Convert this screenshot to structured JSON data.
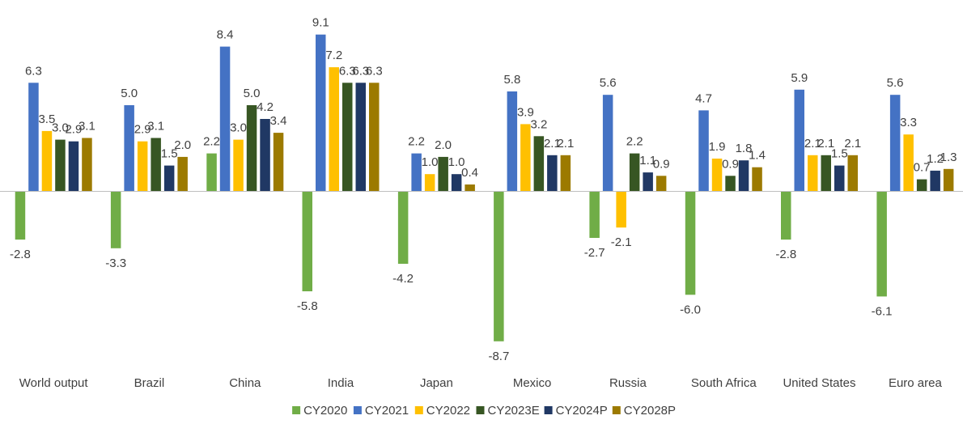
{
  "chart_data": {
    "type": "bar",
    "title": "",
    "xlabel": "",
    "ylabel": "",
    "ylim": [
      -9.5,
      10.5
    ],
    "grid": false,
    "legend_position": "bottom",
    "categories": [
      "World output",
      "Brazil",
      "China",
      "India",
      "Japan",
      "Mexico",
      "Russia",
      "South Africa",
      "United States",
      "Euro area"
    ],
    "series": [
      {
        "name": "CY2020",
        "color": "#70ad47",
        "values": [
          -2.8,
          -3.3,
          2.2,
          -5.8,
          -4.2,
          -8.7,
          -2.7,
          -6.0,
          -2.8,
          -6.1
        ]
      },
      {
        "name": "CY2021",
        "color": "#4472c4",
        "values": [
          6.3,
          5.0,
          8.4,
          9.1,
          2.2,
          5.8,
          5.6,
          4.7,
          5.9,
          5.6
        ]
      },
      {
        "name": "CY2022",
        "color": "#ffc000",
        "values": [
          3.5,
          2.9,
          3.0,
          7.2,
          1.0,
          3.9,
          -2.1,
          1.9,
          2.1,
          3.3
        ]
      },
      {
        "name": "CY2023E",
        "color": "#375623",
        "values": [
          3.0,
          3.1,
          5.0,
          6.3,
          2.0,
          3.2,
          2.2,
          0.9,
          2.1,
          0.7
        ]
      },
      {
        "name": "CY2024P",
        "color": "#203864",
        "values": [
          2.9,
          1.5,
          4.2,
          6.3,
          1.0,
          2.1,
          1.1,
          1.8,
          1.5,
          1.2
        ]
      },
      {
        "name": "CY2028P",
        "color": "#9c7a00",
        "values": [
          3.1,
          2.0,
          3.4,
          6.3,
          0.4,
          2.1,
          0.9,
          1.4,
          2.1,
          1.3
        ]
      }
    ],
    "data_labels": [
      [
        "-2.8",
        "-3.3",
        "2.2",
        "-5.8",
        "-4.2",
        "-8.7",
        "-2.7",
        "-6.0",
        "-2.8",
        "-6.1"
      ],
      [
        "6.3",
        "5.0",
        "8.4",
        "9.1",
        "2.2",
        "5.8",
        "5.6",
        "4.7",
        "5.9",
        "5.6"
      ],
      [
        "3.5",
        "2.9",
        "3.0",
        "7.2",
        "1.0",
        "3.9",
        "-2.1",
        "1.9",
        "2.1",
        "3.3"
      ],
      [
        "3.0",
        "3.1",
        "5.0",
        "6.3",
        "2.0",
        "3.2",
        "2.2",
        "0.9",
        "2.1",
        "0.7"
      ],
      [
        "2.9",
        "1.5",
        "4.2",
        "6.3",
        "1.0",
        "2.1",
        "1.1",
        "1.8",
        "1.5",
        "1.2"
      ],
      [
        "3.1",
        "2.0",
        "3.4",
        "6.3",
        "0.4",
        "2.1",
        "0.9",
        "1.4",
        "2.1",
        "1.3"
      ]
    ]
  }
}
